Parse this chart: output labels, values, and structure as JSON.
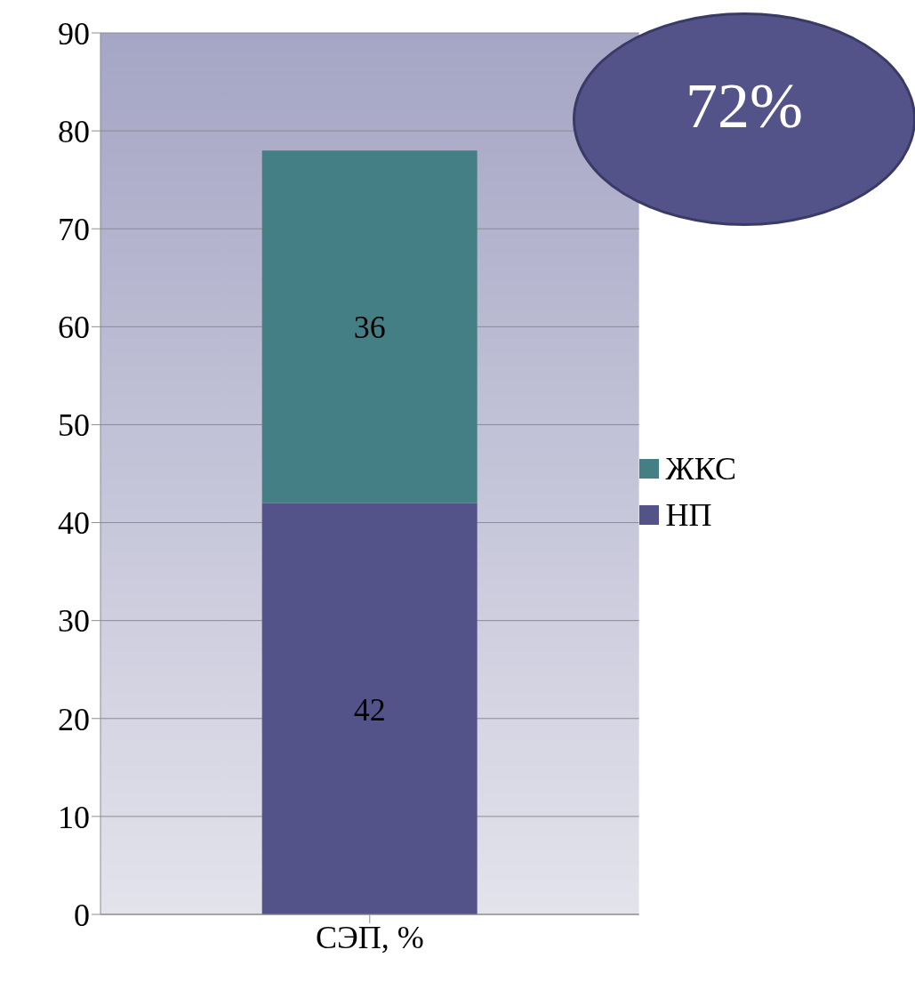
{
  "chart_data": {
    "type": "bar",
    "stacked": true,
    "categories": [
      "СЭП, %"
    ],
    "series": [
      {
        "name": "НП",
        "color": "#53538a",
        "values": [
          42
        ]
      },
      {
        "name": "ЖКС",
        "color": "#447f85",
        "values": [
          36
        ]
      }
    ],
    "ylim": [
      0,
      90
    ],
    "yticks": [
      0,
      10,
      20,
      30,
      40,
      50,
      60,
      70,
      80,
      90
    ],
    "grid": "y",
    "legend": "right",
    "data_labels": true,
    "annotations": [
      "72%"
    ]
  }
}
